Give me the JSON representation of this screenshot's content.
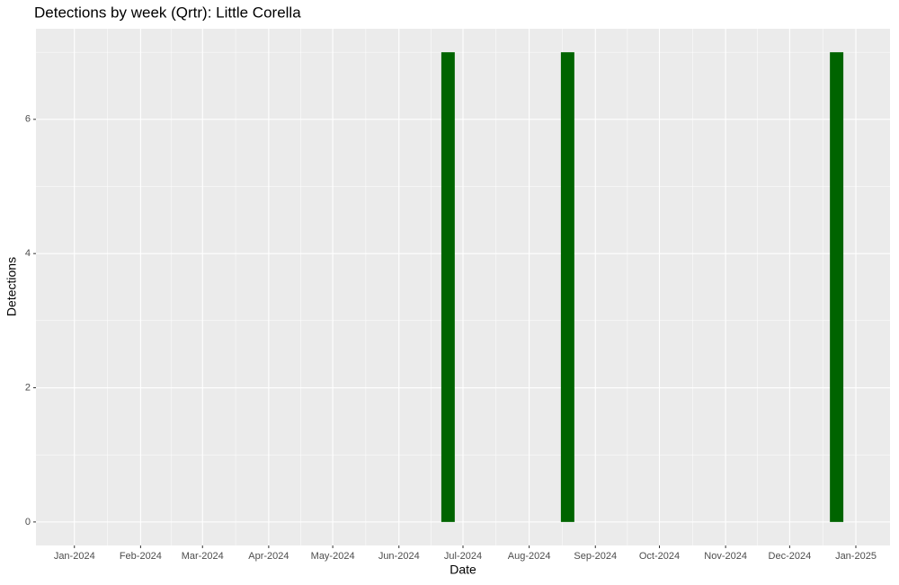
{
  "chart_data": {
    "type": "bar",
    "title": "Detections by week (Qrtr): Little Corella",
    "x_label": "Date",
    "y_label": "Detections",
    "x": [
      "2024-06-24",
      "2024-08-19",
      "2024-12-23"
    ],
    "values": [
      7,
      7,
      7
    ],
    "color": "#006400",
    "xlim": [
      "2023-12-14",
      "2025-01-17"
    ],
    "xticks": [
      {
        "value": "2024-01-01",
        "label": "Jan-2024"
      },
      {
        "value": "2024-02-01",
        "label": "Feb-2024"
      },
      {
        "value": "2024-03-01",
        "label": "Mar-2024"
      },
      {
        "value": "2024-04-01",
        "label": "Apr-2024"
      },
      {
        "value": "2024-05-01",
        "label": "May-2024"
      },
      {
        "value": "2024-06-01",
        "label": "Jun-2024"
      },
      {
        "value": "2024-07-01",
        "label": "Jul-2024"
      },
      {
        "value": "2024-08-01",
        "label": "Aug-2024"
      },
      {
        "value": "2024-09-01",
        "label": "Sep-2024"
      },
      {
        "value": "2024-10-01",
        "label": "Oct-2024"
      },
      {
        "value": "2024-11-01",
        "label": "Nov-2024"
      },
      {
        "value": "2024-12-01",
        "label": "Dec-2024"
      },
      {
        "value": "2025-01-01",
        "label": "Jan-2025"
      }
    ],
    "ylim": [
      -0.35,
      7.35
    ],
    "yticks": [
      0,
      2,
      4,
      6
    ],
    "grid": true
  }
}
